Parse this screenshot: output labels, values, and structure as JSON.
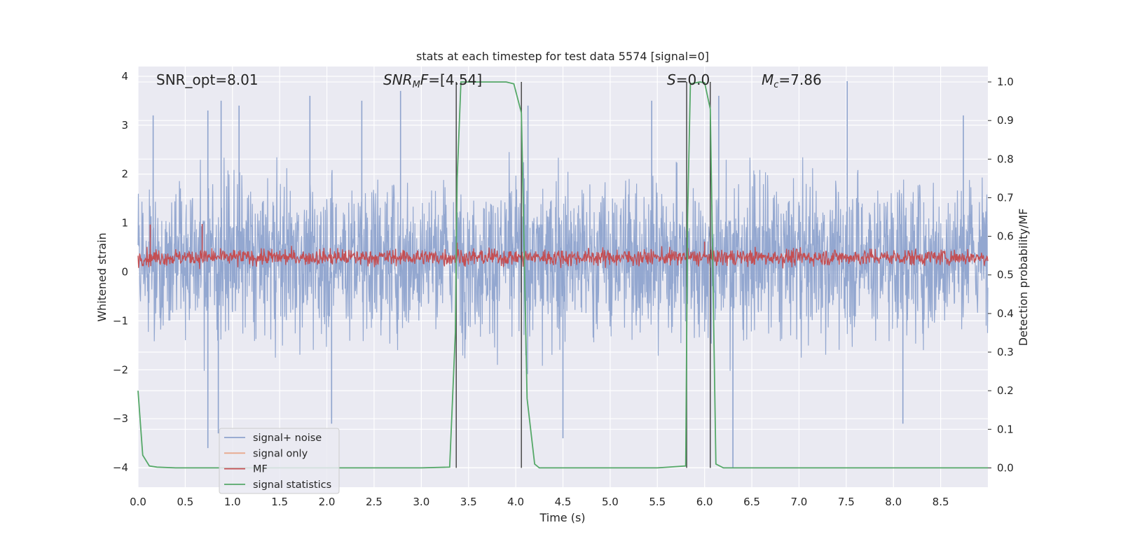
{
  "chart_data": {
    "type": "line",
    "title": "stats at each timestep for test data 5574 [signal=0]",
    "xlabel": "Time (s)",
    "ylabel": "Whitened strain",
    "ylabel_right": "Detection probability/MF",
    "xlim": [
      0.0,
      9.0
    ],
    "ylim": [
      -4.4,
      4.2
    ],
    "ylim_right": [
      -0.05,
      1.04
    ],
    "x_ticks": [
      "0.0",
      "0.5",
      "1.0",
      "1.5",
      "2.0",
      "2.5",
      "3.0",
      "3.5",
      "4.0",
      "4.5",
      "5.0",
      "5.5",
      "6.0",
      "6.5",
      "7.0",
      "7.5",
      "8.0",
      "8.5"
    ],
    "y_ticks": [
      "4",
      "3",
      "2",
      "1",
      "0",
      "−1",
      "−2",
      "−3",
      "−4"
    ],
    "y_ticks_right": [
      "1.0",
      "0.9",
      "0.8",
      "0.7",
      "0.6",
      "0.5",
      "0.4",
      "0.3",
      "0.2",
      "0.1",
      "0.0"
    ],
    "grid": true,
    "annotations": {
      "snr_opt": "SNR_opt=8.01",
      "snr_mf_base": "SNR",
      "snr_mf_sub": "M",
      "snr_mf_rest": "F",
      "snr_mf_value": "=[4.54]",
      "s_label": "S",
      "s_value": "=0.0",
      "mc_label": "M",
      "mc_sub": "c",
      "mc_value": "=7.86"
    },
    "legend": {
      "placement": "lower-left",
      "entries": [
        {
          "label": "signal+ noise",
          "color": "#8ea3cd"
        },
        {
          "label": "signal only",
          "color": "#e8a88c"
        },
        {
          "label": "MF",
          "color": "#c44e52"
        },
        {
          "label": "signal statistics",
          "color": "#55a868"
        }
      ]
    },
    "series": [
      {
        "name": "signal+ noise",
        "axis": "left",
        "style": "dense noise trace",
        "t_range": [
          0.0,
          9.0
        ],
        "envelope_min": -4.0,
        "envelope_max": 3.9,
        "typical_range": [
          -2.0,
          2.6
        ],
        "sampled_peaks": [
          [
            0.16,
            3.2
          ],
          [
            0.74,
            3.3
          ],
          [
            0.88,
            3.5
          ],
          [
            1.07,
            3.4
          ],
          [
            1.82,
            3.6
          ],
          [
            2.37,
            3.5
          ],
          [
            2.78,
            3.7
          ],
          [
            4.13,
            3.4
          ],
          [
            5.44,
            3.5
          ],
          [
            6.15,
            3.6
          ],
          [
            7.51,
            3.9
          ],
          [
            8.74,
            3.2
          ],
          [
            0.74,
            -3.6
          ],
          [
            0.85,
            -3.3
          ],
          [
            2.05,
            -3.1
          ],
          [
            4.5,
            -3.4
          ],
          [
            6.3,
            -4.0
          ],
          [
            8.1,
            -3.1
          ]
        ]
      },
      {
        "name": "MF",
        "axis": "left",
        "style": "dense noise trace",
        "t_range": [
          0.0,
          9.0
        ],
        "mean": 0.3,
        "envelope_min": 0.0,
        "envelope_max": 1.0,
        "sampled_peaks": [
          [
            0.13,
            0.97
          ],
          [
            0.68,
            0.98
          ],
          [
            3.38,
            0.6
          ],
          [
            6.0,
            0.62
          ]
        ]
      },
      {
        "name": "signal statistics",
        "axis": "right",
        "x": [
          0.0,
          0.05,
          0.12,
          0.2,
          0.4,
          1.0,
          2.0,
          3.0,
          3.3,
          3.36,
          3.38,
          3.42,
          3.5,
          3.9,
          3.98,
          4.06,
          4.12,
          4.2,
          4.25,
          4.5,
          5.0,
          5.5,
          5.8,
          5.82,
          5.85,
          5.95,
          6.0,
          6.06,
          6.12,
          6.2,
          6.5,
          9.0
        ],
        "y": [
          0.2,
          0.033,
          0.005,
          0.002,
          0.0,
          0.0,
          0.0,
          0.0,
          0.002,
          0.35,
          0.75,
          1.0,
          1.0,
          1.0,
          0.995,
          0.92,
          0.18,
          0.01,
          0.0,
          0.0,
          0.0,
          0.0,
          0.005,
          0.65,
          0.995,
          1.0,
          0.998,
          0.93,
          0.01,
          0.0,
          0.0,
          0.0
        ]
      }
    ],
    "vlines": [
      3.37,
      4.06,
      5.81,
      6.06
    ]
  }
}
